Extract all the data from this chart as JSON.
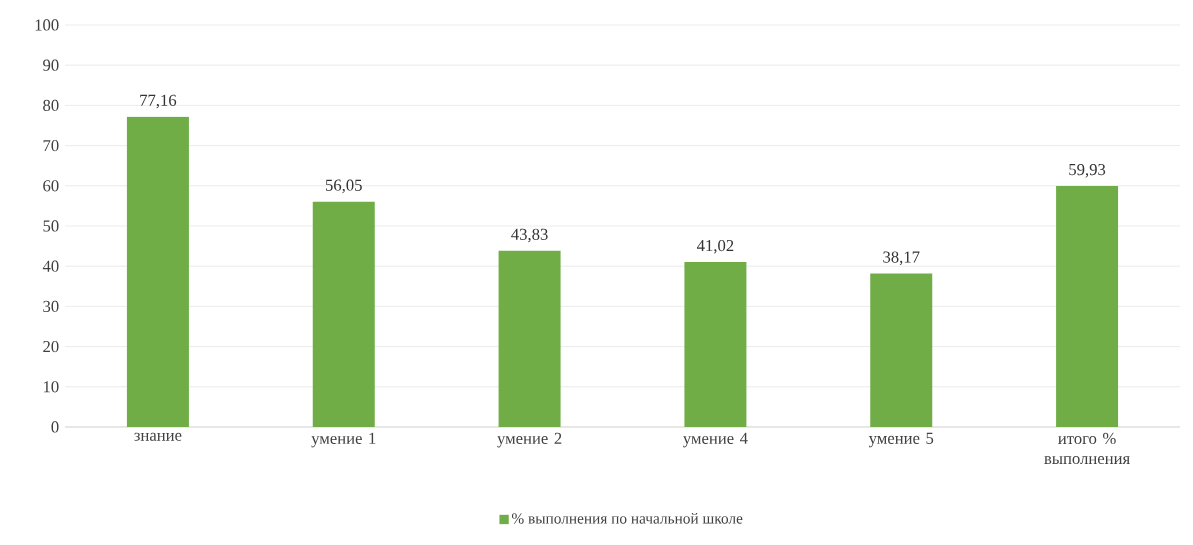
{
  "chart_data": {
    "type": "bar",
    "categories": [
      "знание",
      "умение 1",
      "умение 2",
      "умение 4",
      "умение 5",
      "итого % выполнения"
    ],
    "series": [
      {
        "name": "% выполнения по начальной школе",
        "color": "#70ad47",
        "values": [
          77.16,
          56.05,
          43.83,
          41.02,
          38.17,
          59.93
        ],
        "value_labels": [
          "77,16",
          "56,05",
          "43,83",
          "41,02",
          "38,17",
          "59,93"
        ]
      }
    ],
    "ylim": [
      0,
      100
    ],
    "yticks": [
      0,
      10,
      20,
      30,
      40,
      50,
      60,
      70,
      80,
      90,
      100
    ],
    "grid": "y",
    "legend": "bottom"
  }
}
